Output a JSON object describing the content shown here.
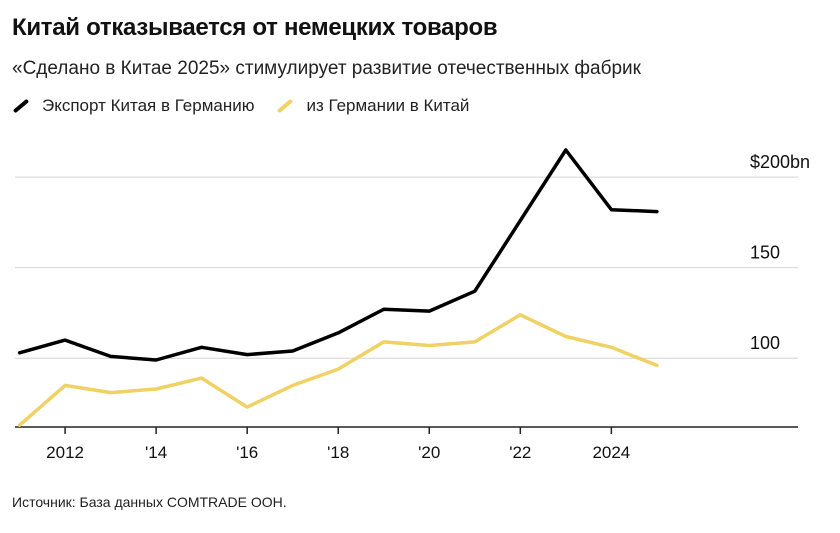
{
  "title": "Китай отказывается от немецких товаров",
  "subtitle": "«Сделано в Китае 2025» стимулирует развитие отечественных фабрик",
  "source": "Источник: База данных COMTRADE ООН.",
  "colors": {
    "china_export": "#000000",
    "germany_export": "#f0d264",
    "grid": "#d4d4d4",
    "axis": "#222222"
  },
  "chart_data": {
    "type": "line",
    "title": "Китай отказывается от немецких товаров",
    "x": [
      2011,
      2012,
      2013,
      2014,
      2015,
      2016,
      2017,
      2018,
      2019,
      2020,
      2021,
      2022,
      2023,
      2024,
      2025
    ],
    "series": [
      {
        "name": "Экспорт Китая в Германию",
        "values": [
          103,
          110,
          101,
          99,
          106,
          102,
          104,
          114,
          127,
          126,
          137,
          176,
          215,
          182,
          181
        ]
      },
      {
        "name": "из Германии в Китай",
        "values": [
          63,
          85,
          81,
          83,
          89,
          73,
          85,
          94,
          109,
          107,
          109,
          124,
          112,
          106,
          96
        ]
      }
    ],
    "y_tick_labels": [
      "$200bn",
      "150",
      "100"
    ],
    "y_ticks": [
      200,
      150,
      100
    ],
    "x_tick_labels": [
      "2012",
      "'14",
      "'16",
      "'18",
      "'20",
      "'22",
      "2024"
    ],
    "x_ticks": [
      2012,
      2014,
      2016,
      2018,
      2020,
      2022,
      2024
    ],
    "xlim": [
      2010.9,
      2028.1
    ],
    "ylim": [
      62,
      215
    ],
    "grid": "horizontal",
    "legend": "top-left"
  }
}
